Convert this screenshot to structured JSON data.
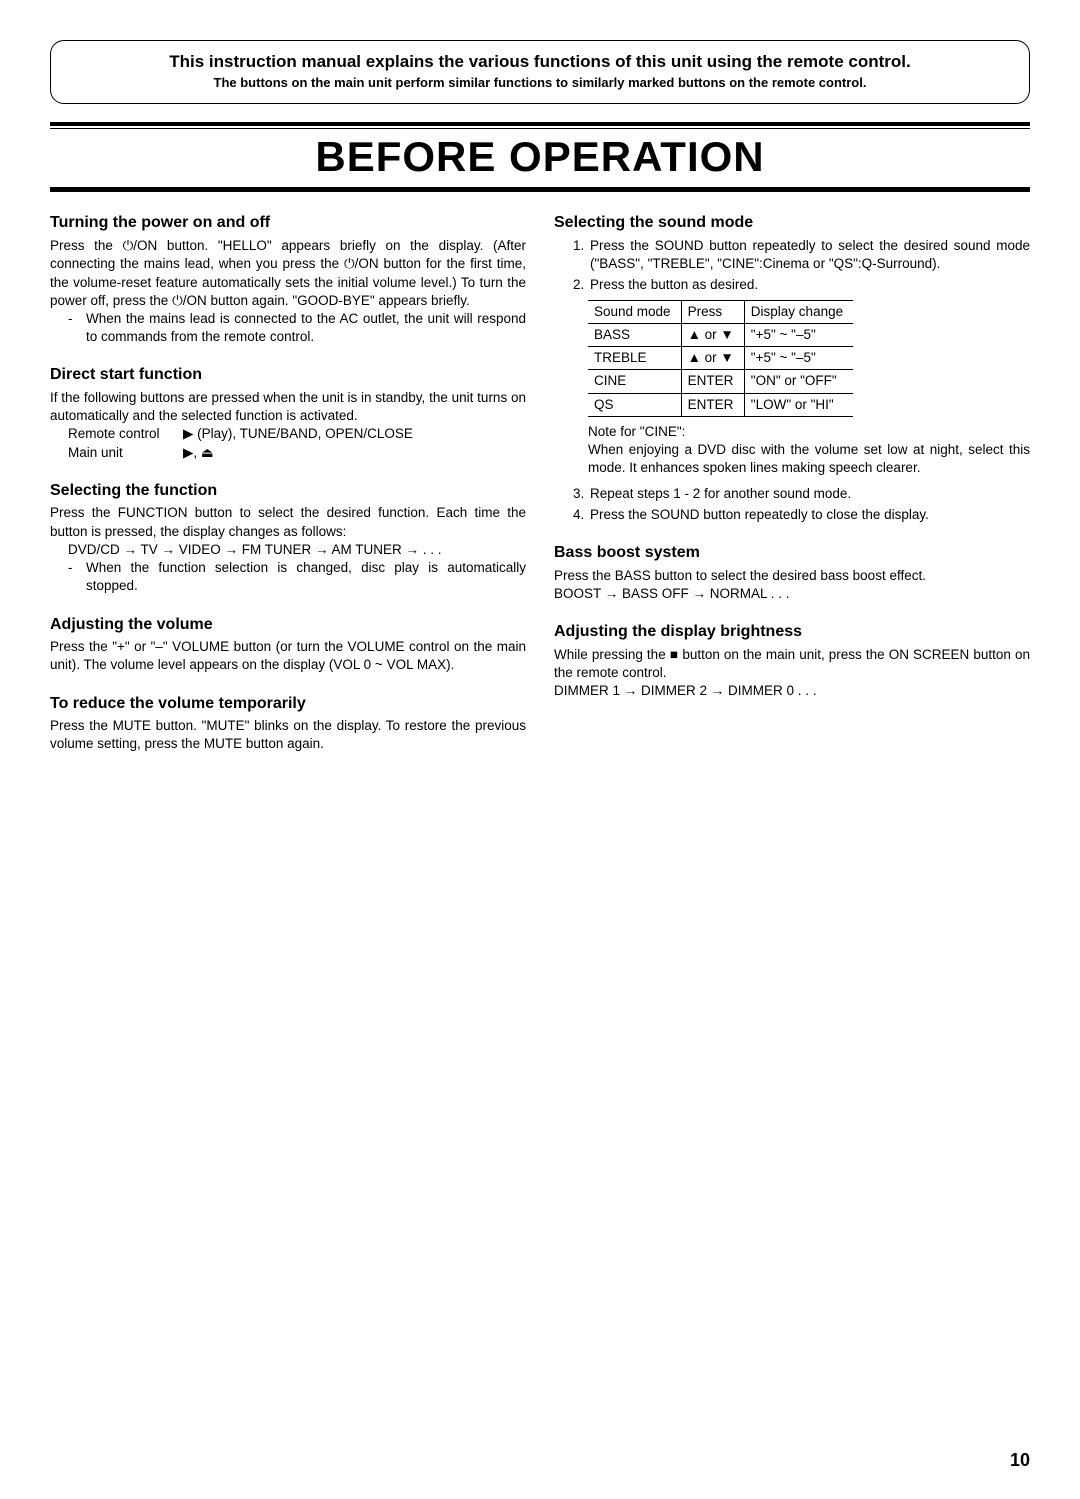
{
  "notice": {
    "title": "This instruction manual explains the various functions of this unit using the remote control.",
    "subtitle": "The buttons on the main unit perform similar functions to similarly marked buttons on the remote control."
  },
  "page_title": "BEFORE OPERATION",
  "left": {
    "power": {
      "heading": "Turning the power on and off",
      "p1a": "Press the ",
      "p1b": "/ON button. \"HELLO\" appears briefly on the display. (After connecting the mains lead, when you press the ",
      "p1c": "/ON button for the first time, the volume-reset feature automatically sets the initial volume level.) To turn the power off, press the ",
      "p1d": "/ON button again. \"GOOD-BYE\" appears briefly.",
      "bullet": "When the mains lead is connected to the AC outlet, the unit will respond to commands from the remote control."
    },
    "direct": {
      "heading": "Direct start function",
      "p1": "If the following buttons are pressed when the unit is in standby, the unit turns on automatically and the selected function is activated.",
      "rows": [
        {
          "k": "Remote control",
          "v": "▶ (Play), TUNE/BAND, OPEN/CLOSE"
        },
        {
          "k": "Main unit",
          "v": "▶, ⏏"
        }
      ]
    },
    "func": {
      "heading": "Selecting the function",
      "p1": "Press the FUNCTION button to select the desired function. Each time the button is pressed, the display changes as follows:",
      "seq": "DVD/CD → TV → VIDEO → FM TUNER → AM TUNER → . . .",
      "bullet": "When the function selection is changed, disc play is automatically stopped."
    },
    "vol": {
      "heading": "Adjusting the volume",
      "p1": "Press the \"+\" or \"–\" VOLUME button (or turn the VOLUME control on the main unit). The volume level appears on the display (VOL 0 ~ VOL MAX)."
    },
    "mute": {
      "heading": "To reduce the volume temporarily",
      "p1": "Press the MUTE button. \"MUTE\" blinks on the display. To restore the previous volume setting, press the MUTE button again."
    }
  },
  "right": {
    "sound": {
      "heading": "Selecting the sound mode",
      "step1": "Press the SOUND button repeatedly to select the desired sound mode (\"BASS\", \"TREBLE\", \"CINE\":Cinema or \"QS\":Q-Surround).",
      "step2": "Press the button as desired.",
      "table": {
        "headers": [
          "Sound mode",
          "Press",
          "Display change"
        ],
        "rows": [
          {
            "mode": "BASS",
            "press": "▲ or ▼",
            "disp": "\"+5\" ~ \"–5\""
          },
          {
            "mode": "TREBLE",
            "press": "▲ or ▼",
            "disp": "\"+5\" ~ \"–5\""
          },
          {
            "mode": "CINE",
            "press": "ENTER",
            "disp": "\"ON\" or \"OFF\""
          },
          {
            "mode": "QS",
            "press": "ENTER",
            "disp": "\"LOW\" or \"HI\""
          }
        ]
      },
      "note_label": "Note for \"CINE\":",
      "note_body": "When enjoying a DVD disc with the volume set low at night, select this mode. It enhances spoken lines making speech clearer.",
      "step3": "Repeat steps 1 - 2 for another sound mode.",
      "step4": "Press the SOUND button repeatedly to close the display."
    },
    "bass": {
      "heading": "Bass boost system",
      "p1": "Press the BASS button to select the desired bass boost effect.",
      "seq": "BOOST → BASS OFF → NORMAL . . ."
    },
    "dim": {
      "heading": "Adjusting the display brightness",
      "p1": "While pressing the ■ button on the main unit, press the ON SCREEN button on the remote control.",
      "seq": "DIMMER 1 → DIMMER 2 → DIMMER 0 . . ."
    }
  },
  "icons": {
    "power": "⏻"
  },
  "page_number": "10"
}
